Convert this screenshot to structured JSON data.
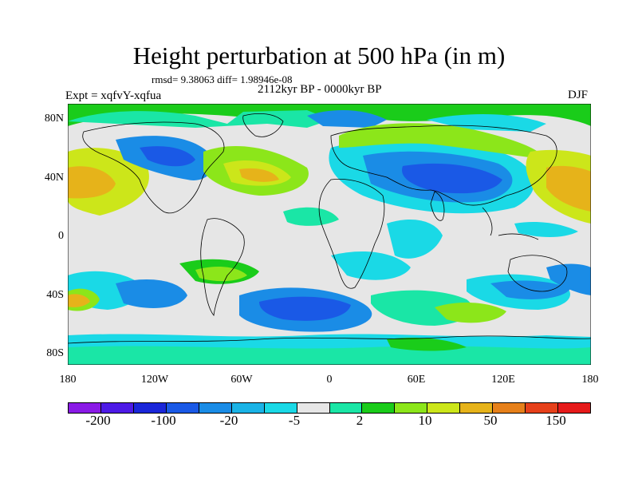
{
  "figure": {
    "title": "Height perturbation at 500 hPa (in m)",
    "stats": "rmsd= 9.38063  diff= 1.98946e-08",
    "experiment": "Expt = xqfvY-xqfua",
    "period": "2112kyr BP - 0000kyr BP",
    "season": "DJF"
  },
  "map": {
    "lat_labels": [
      "80N",
      "40N",
      "0",
      "40S",
      "80S"
    ],
    "lon_labels": [
      "180",
      "120W",
      "60W",
      "0",
      "60E",
      "120E",
      "180"
    ]
  },
  "colorbar": {
    "colors": [
      "#8a1ae6",
      "#4d1ae6",
      "#1a26d9",
      "#1a59e6",
      "#1a8ce6",
      "#1ab3e6",
      "#1ad9e6",
      "#e6e6e6",
      "#1ae6a6",
      "#1acc1a",
      "#8ce61a",
      "#cce61a",
      "#e6b31a",
      "#e6801a",
      "#e6401a",
      "#e61a1a"
    ],
    "labels": [
      "-200",
      "-100",
      "-20",
      "-5",
      "2",
      "10",
      "50",
      "150"
    ]
  }
}
